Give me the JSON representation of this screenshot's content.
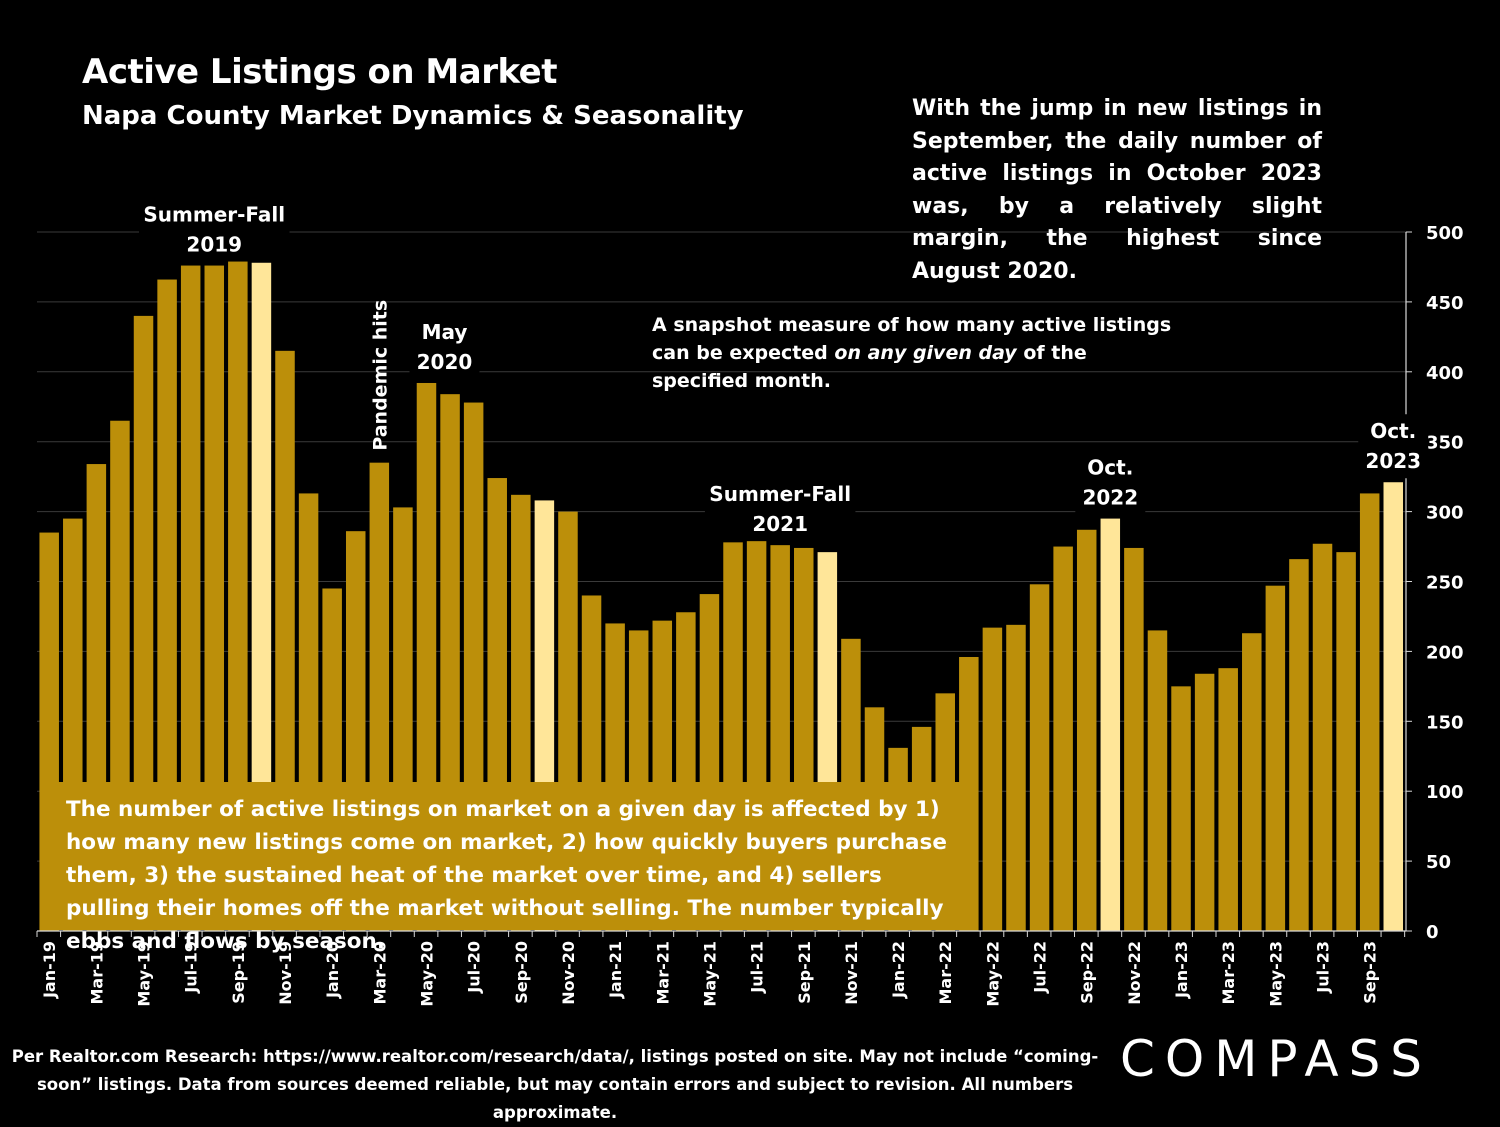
{
  "title": "Active Listings on Market",
  "subtitle": "Napa County Market Dynamics & Seasonality",
  "callout_text": "With the jump in new listings in September, the daily number of active listings in October 2023 was, by a relatively slight margin, the highest since August 2020.",
  "snapshot_note": {
    "part1": "A snapshot measure of how many active listings can be expected ",
    "emphasis": "on any given day",
    "part2": " of the specified month."
  },
  "bottom_note": "The number of active listings on market on a given day is affected by 1) how many new listings come on market, 2) how quickly buyers purchase them, 3) the sustained heat of the market over time, and 4) sellers pulling their homes off the market without selling. The number typically ebbs and flows by season.",
  "footer": {
    "line1": "Per Realtor.com Research:  https://www.realtor.com/research/data/, listings posted on site. May not include “coming-",
    "line2": "soon” listings. Data from sources deemed reliable, but may contain errors and subject to revision. All numbers approximate."
  },
  "logo": "COMPASS",
  "colors": {
    "bar": "#bc8f0a",
    "highlight": "#ffe699",
    "background": "#000000",
    "text": "#ffffff"
  },
  "chart_data": {
    "type": "bar",
    "categories": [
      "Jan-19",
      "Feb-19",
      "Mar-19",
      "Apr-19",
      "May-19",
      "Jun-19",
      "Jul-19",
      "Aug-19",
      "Sep-19",
      "Oct-19",
      "Nov-19",
      "Dec-19",
      "Jan-20",
      "Feb-20",
      "Mar-20",
      "Apr-20",
      "May-20",
      "Jun-20",
      "Jul-20",
      "Aug-20",
      "Sep-20",
      "Oct-20",
      "Nov-20",
      "Dec-20",
      "Jan-21",
      "Feb-21",
      "Mar-21",
      "Apr-21",
      "May-21",
      "Jun-21",
      "Jul-21",
      "Aug-21",
      "Sep-21",
      "Oct-21",
      "Nov-21",
      "Dec-21",
      "Jan-22",
      "Feb-22",
      "Mar-22",
      "Apr-22",
      "May-22",
      "Jun-22",
      "Jul-22",
      "Aug-22",
      "Sep-22",
      "Oct-22",
      "Nov-22",
      "Dec-22",
      "Jan-23",
      "Feb-23",
      "Mar-23",
      "Apr-23",
      "May-23",
      "Jun-23",
      "Jul-23",
      "Aug-23",
      "Sep-23",
      "Oct-23"
    ],
    "tick_labels": [
      "Jan-19",
      "Mar-19",
      "May-19",
      "Jul-19",
      "Sep-19",
      "Nov-19",
      "Jan-20",
      "Mar-20",
      "May-20",
      "Jul-20",
      "Sep-20",
      "Nov-20",
      "Jan-21",
      "Mar-21",
      "May-21",
      "Jul-21",
      "Sep-21",
      "Nov-21",
      "Jan-22",
      "Mar-22",
      "May-22",
      "Jul-22",
      "Sep-22",
      "Nov-22",
      "Jan-23",
      "Mar-23",
      "May-23",
      "Jul-23",
      "Sep-23"
    ],
    "values": [
      285,
      295,
      334,
      365,
      440,
      466,
      476,
      476,
      479,
      478,
      415,
      313,
      245,
      286,
      335,
      303,
      392,
      384,
      378,
      324,
      312,
      308,
      300,
      240,
      220,
      215,
      222,
      228,
      241,
      278,
      284,
      276,
      274,
      271,
      209,
      160,
      131,
      146,
      170,
      196,
      217,
      219,
      248,
      275,
      287,
      295,
      274,
      215,
      175,
      184,
      188,
      213,
      247,
      266,
      277,
      271,
      313,
      321
    ],
    "highlight_categories": [
      "Oct-19",
      "Oct-20",
      "Oct-21",
      "Oct-22",
      "Oct-23"
    ],
    "ylim": [
      0,
      500
    ],
    "yticks": [
      0,
      50,
      100,
      150,
      200,
      250,
      300,
      350,
      400,
      450,
      500
    ],
    "y_axis_position": "right",
    "grid": true,
    "annotations": [
      {
        "category": "Aug-19",
        "lines": [
          "Summer-Fall",
          "2019"
        ]
      },
      {
        "category": "May-20",
        "lines": [
          "May",
          "2020"
        ]
      },
      {
        "category": "Mar-20",
        "lines": [
          "Pandemic hits"
        ],
        "rotated": true
      },
      {
        "category": "Aug-21",
        "lines": [
          "Summer-Fall",
          "2021"
        ]
      },
      {
        "category": "Oct-22",
        "lines": [
          "Oct.",
          "2022"
        ]
      },
      {
        "category": "Oct-23",
        "lines": [
          "Oct.",
          "2023"
        ]
      }
    ]
  }
}
